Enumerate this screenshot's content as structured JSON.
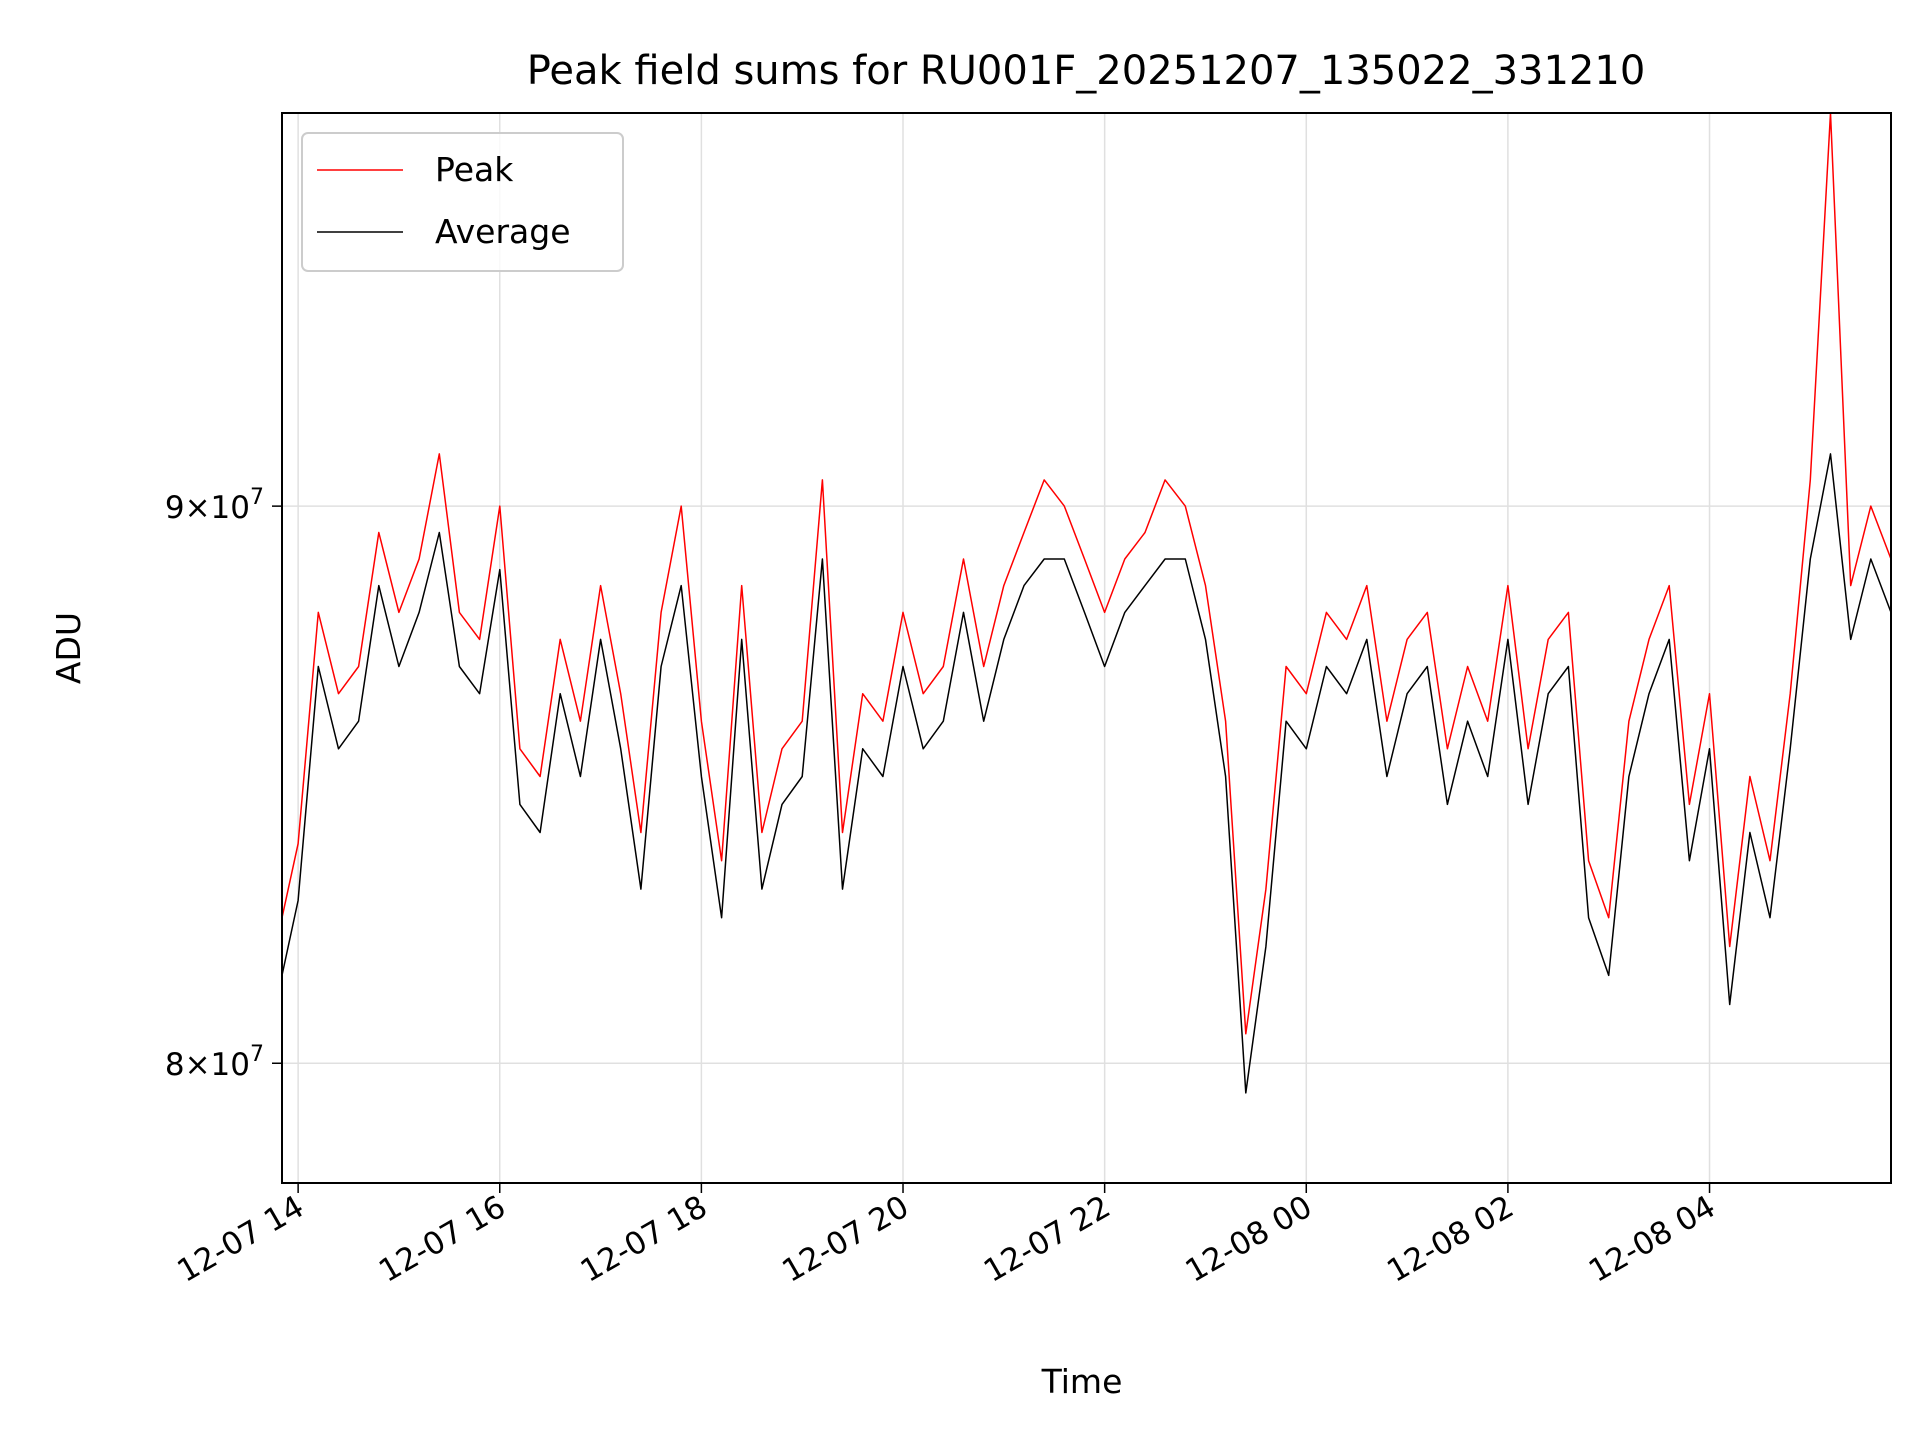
{
  "chart_data": {
    "type": "line",
    "title": "Peak field sums for RU001F_20251207_135022_331210",
    "xlabel": "Time",
    "ylabel": "ADU",
    "x_range_hours": [
      13.84,
      29.8
    ],
    "ylim": [
      78000000,
      97800000
    ],
    "y_scale": "log",
    "grid": true,
    "legend_position": "top-left",
    "x_ticks": [
      {
        "label": "12-07 14",
        "hours": 14
      },
      {
        "label": "12-07 16",
        "hours": 16
      },
      {
        "label": "12-07 18",
        "hours": 18
      },
      {
        "label": "12-07 20",
        "hours": 20
      },
      {
        "label": "12-07 22",
        "hours": 22
      },
      {
        "label": "12-08 00",
        "hours": 24
      },
      {
        "label": "12-08 02",
        "hours": 26
      },
      {
        "label": "12-08 04",
        "hours": 28
      }
    ],
    "y_ticks": [
      {
        "base": "8",
        "exp": "7",
        "value": 80000000
      },
      {
        "base": "9",
        "exp": "7",
        "value": 90000000
      }
    ],
    "y_tick_times": "×10",
    "series": [
      {
        "name": "Peak",
        "color": "#ff0000",
        "x_hours": [
          13.84,
          14.0,
          14.2,
          14.4,
          14.6,
          14.8,
          15.0,
          15.2,
          15.4,
          15.6,
          15.8,
          16.0,
          16.2,
          16.4,
          16.6,
          16.8,
          17.0,
          17.2,
          17.4,
          17.6,
          17.8,
          18.0,
          18.2,
          18.4,
          18.6,
          18.8,
          19.0,
          19.2,
          19.4,
          19.6,
          19.8,
          20.0,
          20.2,
          20.4,
          20.6,
          20.8,
          21.0,
          21.2,
          21.4,
          21.6,
          21.8,
          22.0,
          22.2,
          22.4,
          22.6,
          22.8,
          23.0,
          23.2,
          23.4,
          23.6,
          23.8,
          24.0,
          24.2,
          24.4,
          24.6,
          24.8,
          25.0,
          25.2,
          25.4,
          25.6,
          25.8,
          26.0,
          26.2,
          26.4,
          26.6,
          26.8,
          27.0,
          27.2,
          27.4,
          27.6,
          27.8,
          28.0,
          28.2,
          28.4,
          28.6,
          28.8,
          29.0,
          29.2,
          29.4,
          29.6,
          29.8
        ],
        "values": [
          82500000,
          83800000,
          88000000,
          86500000,
          87000000,
          89500000,
          88000000,
          89000000,
          91000000,
          88000000,
          87500000,
          90000000,
          85500000,
          85000000,
          87500000,
          86000000,
          88500000,
          86500000,
          84000000,
          88000000,
          90000000,
          86000000,
          83500000,
          88500000,
          84000000,
          85500000,
          86000000,
          90500000,
          84000000,
          86500000,
          86000000,
          88000000,
          86500000,
          87000000,
          89000000,
          87000000,
          88500000,
          89500000,
          90500000,
          90000000,
          89000000,
          88000000,
          89000000,
          89500000,
          90500000,
          90000000,
          88500000,
          86000000,
          80500000,
          83000000,
          87000000,
          86500000,
          88000000,
          87500000,
          88500000,
          86000000,
          87500000,
          88000000,
          85500000,
          87000000,
          86000000,
          88500000,
          85500000,
          87500000,
          88000000,
          83500000,
          82500000,
          86000000,
          87500000,
          88500000,
          84500000,
          86500000,
          82000000,
          85000000,
          83500000,
          86500000,
          90500000,
          97800000,
          88500000,
          90000000,
          89000000
        ]
      },
      {
        "name": "Average",
        "color": "#000000",
        "x_hours": [
          13.84,
          14.0,
          14.2,
          14.4,
          14.6,
          14.8,
          15.0,
          15.2,
          15.4,
          15.6,
          15.8,
          16.0,
          16.2,
          16.4,
          16.6,
          16.8,
          17.0,
          17.2,
          17.4,
          17.6,
          17.8,
          18.0,
          18.2,
          18.4,
          18.6,
          18.8,
          19.0,
          19.2,
          19.4,
          19.6,
          19.8,
          20.0,
          20.2,
          20.4,
          20.6,
          20.8,
          21.0,
          21.2,
          21.4,
          21.6,
          21.8,
          22.0,
          22.2,
          22.4,
          22.6,
          22.8,
          23.0,
          23.2,
          23.4,
          23.6,
          23.8,
          24.0,
          24.2,
          24.4,
          24.6,
          24.8,
          25.0,
          25.2,
          25.4,
          25.6,
          25.8,
          26.0,
          26.2,
          26.4,
          26.6,
          26.8,
          27.0,
          27.2,
          27.4,
          27.6,
          27.8,
          28.0,
          28.2,
          28.4,
          28.6,
          28.8,
          29.0,
          29.2,
          29.4,
          29.6,
          29.8
        ],
        "values": [
          81500000,
          82800000,
          87000000,
          85500000,
          86000000,
          88500000,
          87000000,
          88000000,
          89500000,
          87000000,
          86500000,
          88800000,
          84500000,
          84000000,
          86500000,
          85000000,
          87500000,
          85500000,
          83000000,
          87000000,
          88500000,
          85000000,
          82500000,
          87500000,
          83000000,
          84500000,
          85000000,
          89000000,
          83000000,
          85500000,
          85000000,
          87000000,
          85500000,
          86000000,
          88000000,
          86000000,
          87500000,
          88500000,
          89000000,
          89000000,
          88000000,
          87000000,
          88000000,
          88500000,
          89000000,
          89000000,
          87500000,
          85000000,
          79500000,
          82000000,
          86000000,
          85500000,
          87000000,
          86500000,
          87500000,
          85000000,
          86500000,
          87000000,
          84500000,
          86000000,
          85000000,
          87500000,
          84500000,
          86500000,
          87000000,
          82500000,
          81500000,
          85000000,
          86500000,
          87500000,
          83500000,
          85500000,
          81000000,
          84000000,
          82500000,
          85500000,
          89000000,
          91000000,
          87500000,
          89000000,
          88000000
        ]
      }
    ]
  }
}
